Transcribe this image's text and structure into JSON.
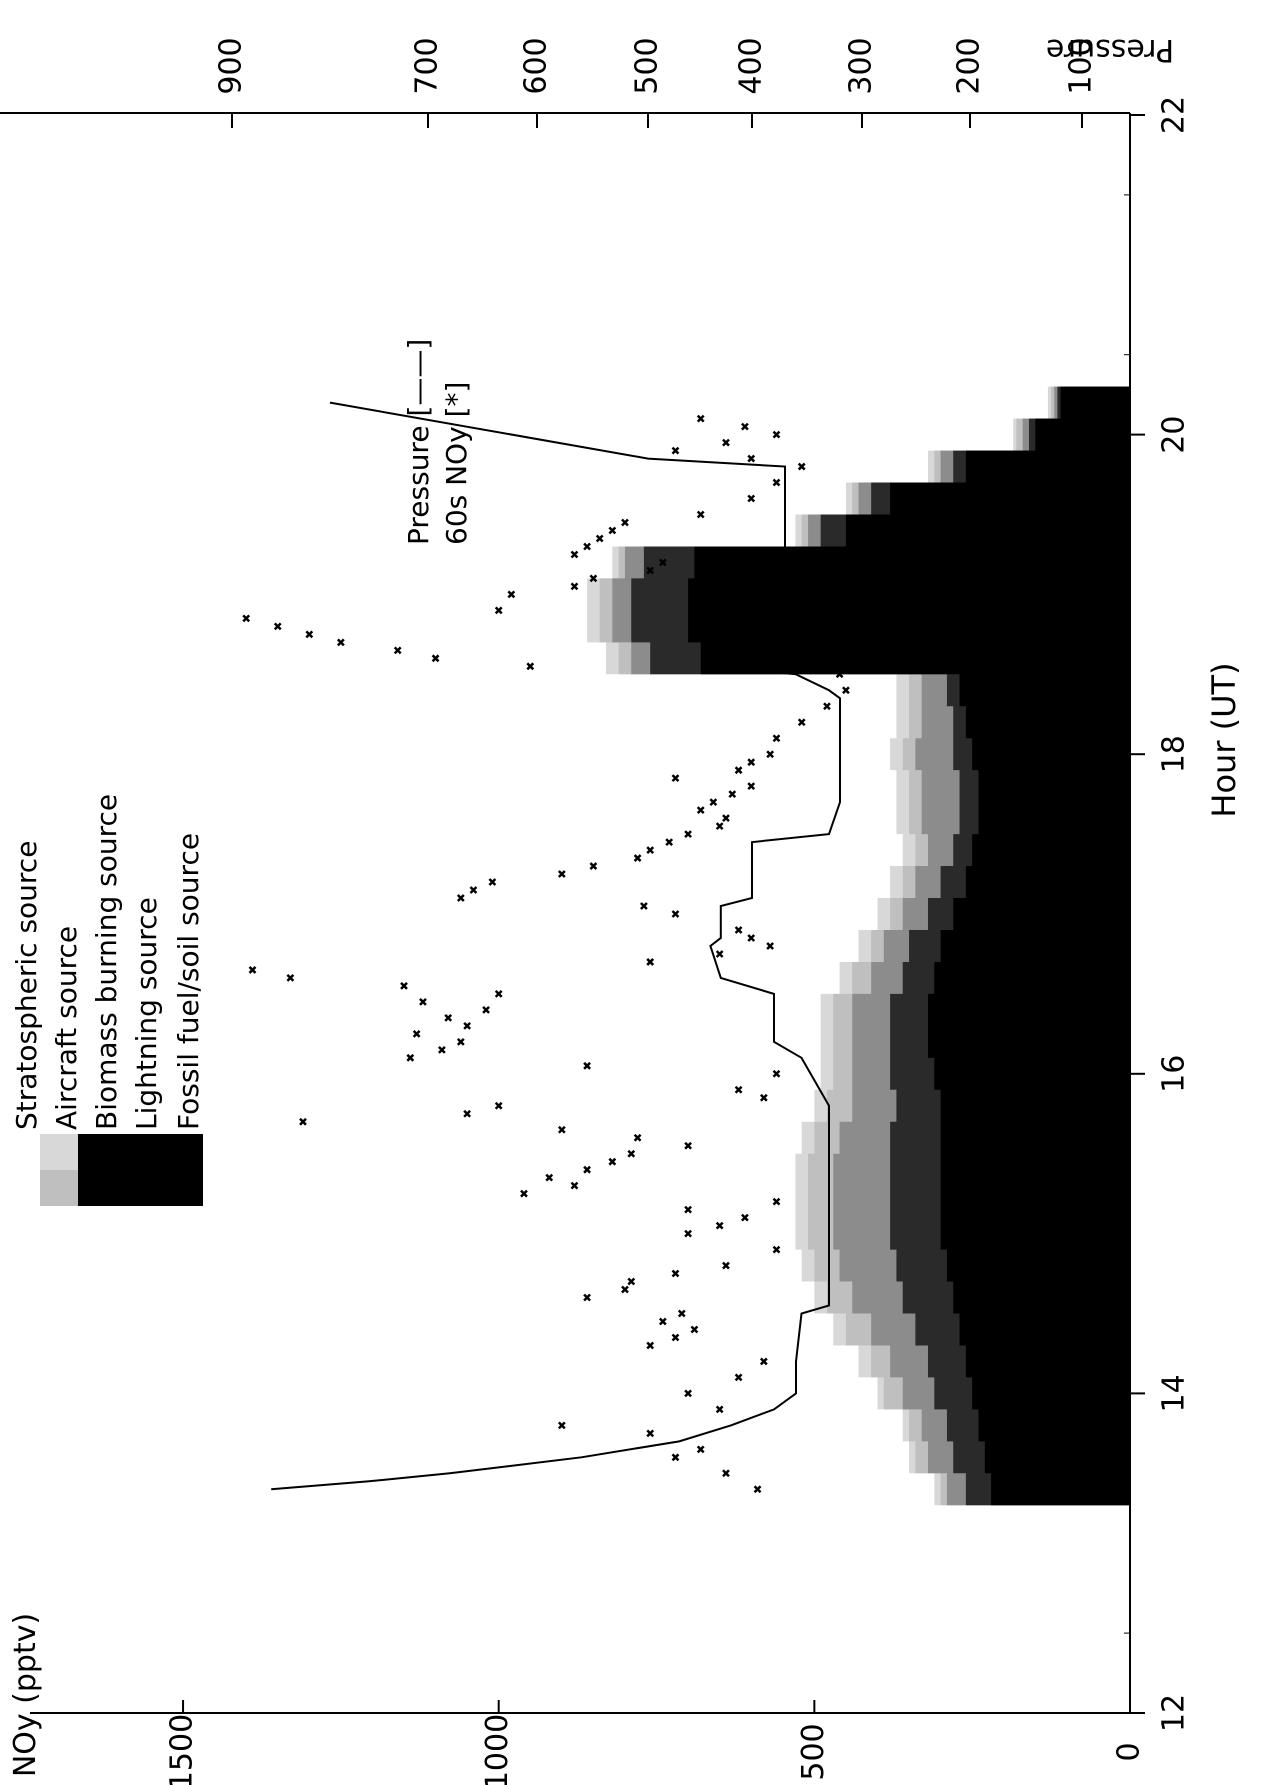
{
  "chart_data": {
    "type": "area",
    "orientation": "rotated-90-counterclockwise",
    "xlabel": "Hour (UT)",
    "ylabel": "NOy (pptv)",
    "y2label": "Pressure",
    "xlim": [
      12,
      22
    ],
    "ylim": [
      0,
      1800
    ],
    "y2_ticks": [
      100,
      200,
      300,
      400,
      500,
      600,
      700,
      900
    ],
    "x_ticks": [
      12,
      14,
      16,
      18,
      20,
      22
    ],
    "y_ticks": [
      0,
      500,
      1000,
      1500
    ],
    "legend_position": "top-left",
    "legend_left": [
      {
        "label": "Stratospheric source",
        "color": "#d8d8d8"
      },
      {
        "label": "Aircraft source",
        "color": "#bfbfbf"
      },
      {
        "label": "Biomass burning source",
        "color": "#8c8c8c"
      },
      {
        "label": "Lightning source",
        "color": "#2a2a2a"
      },
      {
        "label": "Fossil fuel/soil source",
        "color": "#000000"
      }
    ],
    "legend_right": [
      {
        "label": "Pressure [——]",
        "marker": "line"
      },
      {
        "label": "60s NOy [*]",
        "marker": "cross"
      }
    ],
    "hours": [
      13.4,
      13.6,
      13.8,
      14.0,
      14.2,
      14.4,
      14.6,
      14.8,
      15.0,
      15.2,
      15.4,
      15.6,
      15.8,
      16.0,
      16.2,
      16.4,
      16.6,
      16.8,
      17.0,
      17.2,
      17.4,
      17.6,
      17.8,
      18.0,
      18.2,
      18.4,
      18.6,
      18.8,
      19.0,
      19.2,
      19.4,
      19.6,
      19.8,
      20.0,
      20.2
    ],
    "stacked_series": [
      {
        "name": "Fossil fuel/soil source",
        "values": [
          220,
          230,
          240,
          250,
          260,
          270,
          280,
          290,
          300,
          300,
          300,
          300,
          300,
          310,
          320,
          320,
          310,
          300,
          280,
          260,
          250,
          240,
          240,
          250,
          260,
          270,
          680,
          700,
          700,
          690,
          450,
          380,
          260,
          150,
          110
        ]
      },
      {
        "name": "Lightning source",
        "values": [
          40,
          50,
          50,
          60,
          60,
          70,
          80,
          80,
          80,
          80,
          80,
          80,
          70,
          70,
          60,
          60,
          50,
          50,
          40,
          40,
          30,
          30,
          30,
          30,
          20,
          20,
          80,
          90,
          90,
          80,
          40,
          30,
          20,
          10,
          5
        ]
      },
      {
        "name": "Biomass burning source",
        "values": [
          30,
          40,
          40,
          50,
          60,
          70,
          80,
          90,
          90,
          90,
          90,
          80,
          70,
          60,
          60,
          60,
          50,
          40,
          40,
          40,
          40,
          60,
          60,
          60,
          50,
          40,
          30,
          30,
          30,
          30,
          20,
          20,
          20,
          10,
          5
        ]
      },
      {
        "name": "Aircraft source",
        "values": [
          10,
          20,
          20,
          30,
          30,
          40,
          40,
          40,
          40,
          40,
          40,
          40,
          40,
          30,
          30,
          30,
          30,
          20,
          20,
          20,
          20,
          20,
          20,
          20,
          20,
          20,
          20,
          20,
          20,
          10,
          10,
          10,
          10,
          10,
          5
        ]
      },
      {
        "name": "Stratospheric source",
        "values": [
          10,
          10,
          10,
          10,
          20,
          20,
          20,
          20,
          20,
          20,
          20,
          20,
          20,
          20,
          20,
          20,
          20,
          20,
          20,
          20,
          20,
          20,
          20,
          20,
          20,
          20,
          20,
          20,
          20,
          10,
          10,
          10,
          10,
          5,
          5
        ]
      }
    ],
    "pressure": {
      "hours": [
        13.4,
        13.45,
        13.5,
        13.6,
        13.7,
        13.8,
        13.9,
        14.0,
        14.05,
        14.2,
        14.5,
        14.55,
        14.6,
        15.5,
        15.6,
        15.75,
        15.8,
        16.1,
        16.2,
        16.5,
        16.6,
        16.8,
        16.85,
        17.05,
        17.1,
        17.45,
        17.5,
        17.7,
        17.75,
        18.35,
        18.4,
        18.5,
        18.55,
        18.9,
        18.95,
        19.1,
        19.15,
        19.75,
        19.8,
        19.85,
        20.2
      ],
      "values": [
        860,
        760,
        680,
        560,
        470,
        420,
        380,
        360,
        360,
        360,
        355,
        330,
        330,
        330,
        330,
        330,
        330,
        355,
        380,
        380,
        430,
        440,
        430,
        430,
        400,
        400,
        330,
        320,
        320,
        320,
        330,
        360,
        440,
        440,
        410,
        400,
        370,
        370,
        370,
        500,
        800
      ]
    },
    "noy_60s": [
      {
        "x": 13.4,
        "y": 590
      },
      {
        "x": 13.5,
        "y": 640
      },
      {
        "x": 13.6,
        "y": 720
      },
      {
        "x": 13.65,
        "y": 680
      },
      {
        "x": 13.75,
        "y": 760
      },
      {
        "x": 13.8,
        "y": 900
      },
      {
        "x": 13.9,
        "y": 650
      },
      {
        "x": 14.0,
        "y": 700
      },
      {
        "x": 14.1,
        "y": 620
      },
      {
        "x": 14.2,
        "y": 580
      },
      {
        "x": 14.3,
        "y": 760
      },
      {
        "x": 14.35,
        "y": 720
      },
      {
        "x": 14.4,
        "y": 690
      },
      {
        "x": 14.45,
        "y": 740
      },
      {
        "x": 14.5,
        "y": 710
      },
      {
        "x": 14.6,
        "y": 860
      },
      {
        "x": 14.65,
        "y": 800
      },
      {
        "x": 14.7,
        "y": 790
      },
      {
        "x": 14.75,
        "y": 720
      },
      {
        "x": 14.8,
        "y": 640
      },
      {
        "x": 14.9,
        "y": 560
      },
      {
        "x": 15.0,
        "y": 700
      },
      {
        "x": 15.05,
        "y": 650
      },
      {
        "x": 15.1,
        "y": 610
      },
      {
        "x": 15.15,
        "y": 700
      },
      {
        "x": 15.2,
        "y": 560
      },
      {
        "x": 15.25,
        "y": 960
      },
      {
        "x": 15.3,
        "y": 880
      },
      {
        "x": 15.35,
        "y": 920
      },
      {
        "x": 15.4,
        "y": 860
      },
      {
        "x": 15.45,
        "y": 820
      },
      {
        "x": 15.5,
        "y": 790
      },
      {
        "x": 15.55,
        "y": 700
      },
      {
        "x": 15.6,
        "y": 780
      },
      {
        "x": 15.65,
        "y": 900
      },
      {
        "x": 15.7,
        "y": 1310
      },
      {
        "x": 15.75,
        "y": 1050
      },
      {
        "x": 15.8,
        "y": 1000
      },
      {
        "x": 15.85,
        "y": 580
      },
      {
        "x": 15.9,
        "y": 620
      },
      {
        "x": 16.0,
        "y": 560
      },
      {
        "x": 16.05,
        "y": 860
      },
      {
        "x": 16.1,
        "y": 1140
      },
      {
        "x": 16.15,
        "y": 1090
      },
      {
        "x": 16.2,
        "y": 1060
      },
      {
        "x": 16.25,
        "y": 1130
      },
      {
        "x": 16.3,
        "y": 1050
      },
      {
        "x": 16.35,
        "y": 1080
      },
      {
        "x": 16.4,
        "y": 1020
      },
      {
        "x": 16.45,
        "y": 1120
      },
      {
        "x": 16.5,
        "y": 1000
      },
      {
        "x": 16.55,
        "y": 1150
      },
      {
        "x": 16.6,
        "y": 1330
      },
      {
        "x": 16.65,
        "y": 1390
      },
      {
        "x": 16.7,
        "y": 760
      },
      {
        "x": 16.75,
        "y": 650
      },
      {
        "x": 16.8,
        "y": 570
      },
      {
        "x": 16.85,
        "y": 600
      },
      {
        "x": 16.9,
        "y": 620
      },
      {
        "x": 17.0,
        "y": 720
      },
      {
        "x": 17.05,
        "y": 770
      },
      {
        "x": 17.1,
        "y": 1060
      },
      {
        "x": 17.15,
        "y": 1040
      },
      {
        "x": 17.2,
        "y": 1010
      },
      {
        "x": 17.25,
        "y": 900
      },
      {
        "x": 17.3,
        "y": 850
      },
      {
        "x": 17.35,
        "y": 780
      },
      {
        "x": 17.4,
        "y": 760
      },
      {
        "x": 17.45,
        "y": 730
      },
      {
        "x": 17.5,
        "y": 700
      },
      {
        "x": 17.55,
        "y": 650
      },
      {
        "x": 17.6,
        "y": 640
      },
      {
        "x": 17.65,
        "y": 680
      },
      {
        "x": 17.7,
        "y": 660
      },
      {
        "x": 17.75,
        "y": 630
      },
      {
        "x": 17.8,
        "y": 600
      },
      {
        "x": 17.85,
        "y": 720
      },
      {
        "x": 17.9,
        "y": 620
      },
      {
        "x": 17.95,
        "y": 600
      },
      {
        "x": 18.0,
        "y": 570
      },
      {
        "x": 18.1,
        "y": 560
      },
      {
        "x": 18.2,
        "y": 520
      },
      {
        "x": 18.3,
        "y": 480
      },
      {
        "x": 18.4,
        "y": 450
      },
      {
        "x": 18.5,
        "y": 460
      },
      {
        "x": 18.55,
        "y": 950
      },
      {
        "x": 18.6,
        "y": 1100
      },
      {
        "x": 18.65,
        "y": 1160
      },
      {
        "x": 18.7,
        "y": 1250
      },
      {
        "x": 18.75,
        "y": 1300
      },
      {
        "x": 18.8,
        "y": 1350
      },
      {
        "x": 18.85,
        "y": 1400
      },
      {
        "x": 18.9,
        "y": 1000
      },
      {
        "x": 19.0,
        "y": 980
      },
      {
        "x": 19.05,
        "y": 880
      },
      {
        "x": 19.1,
        "y": 850
      },
      {
        "x": 19.15,
        "y": 760
      },
      {
        "x": 19.2,
        "y": 740
      },
      {
        "x": 19.25,
        "y": 880
      },
      {
        "x": 19.3,
        "y": 860
      },
      {
        "x": 19.35,
        "y": 840
      },
      {
        "x": 19.4,
        "y": 820
      },
      {
        "x": 19.45,
        "y": 800
      },
      {
        "x": 19.5,
        "y": 680
      },
      {
        "x": 19.6,
        "y": 600
      },
      {
        "x": 19.7,
        "y": 560
      },
      {
        "x": 19.8,
        "y": 520
      },
      {
        "x": 19.85,
        "y": 600
      },
      {
        "x": 19.9,
        "y": 720
      },
      {
        "x": 19.95,
        "y": 640
      },
      {
        "x": 20.0,
        "y": 560
      },
      {
        "x": 20.05,
        "y": 610
      },
      {
        "x": 20.1,
        "y": 680
      }
    ]
  }
}
